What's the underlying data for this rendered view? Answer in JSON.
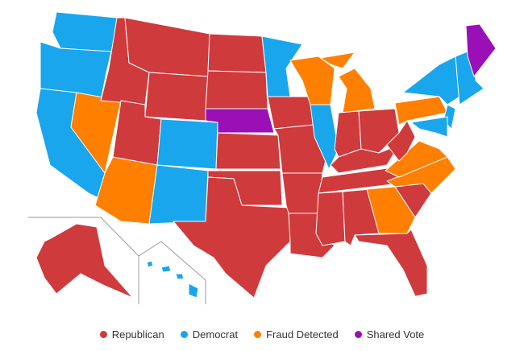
{
  "legend": {
    "items": [
      {
        "label": "Republican",
        "color": "#cf3a3c"
      },
      {
        "label": "Democrat",
        "color": "#19a6ec"
      },
      {
        "label": "Fraud Detected",
        "color": "#ff7f00"
      },
      {
        "label": "Shared Vote",
        "color": "#9a0fb6"
      }
    ]
  }
}
